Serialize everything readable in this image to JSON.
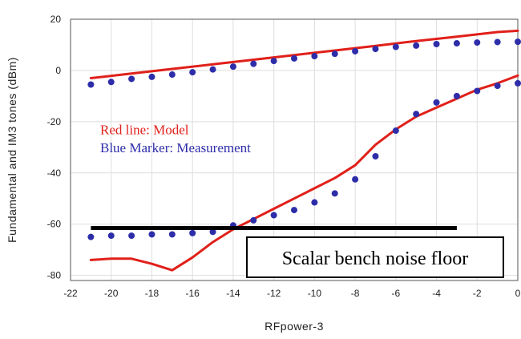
{
  "chart_data": {
    "type": "line",
    "xlabel": "RFpower-3",
    "ylabel": "Fundamental and IM3 tones (dBm)",
    "xlim": [
      -22,
      0
    ],
    "ylim": [
      -82,
      20
    ],
    "x_ticks": [
      "-22",
      "-20",
      "-18",
      "-16",
      "-14",
      "-12",
      "-10",
      "-8",
      "-6",
      "-4",
      "-2",
      "0"
    ],
    "y_ticks": [
      "20",
      "0",
      "-20",
      "-40",
      "-60",
      "-80"
    ],
    "grid": true,
    "legend": {
      "model": "Red line: Model",
      "measurement": "Blue Marker: Measurement",
      "position": "middle-left"
    },
    "series": [
      {
        "name": "Model",
        "kind": "line",
        "color": "#e0201a",
        "points": [
          [
            -21,
            -3
          ],
          [
            -19,
            -1.2
          ],
          [
            -17,
            0.6
          ],
          [
            -15,
            2.4
          ],
          [
            -13,
            4.2
          ],
          [
            -11,
            6
          ],
          [
            -9,
            7.8
          ],
          [
            -7,
            9.6
          ],
          [
            -5,
            11.5
          ],
          [
            -3,
            13.2
          ],
          [
            -1,
            15
          ],
          [
            0,
            15.5
          ]
        ]
      },
      {
        "name": "Model",
        "kind": "line",
        "color": "#e0201a",
        "points": [
          [
            -21,
            -74
          ],
          [
            -20,
            -73.5
          ],
          [
            -19,
            -73.5
          ],
          [
            -18,
            -75.5
          ],
          [
            -17,
            -78
          ],
          [
            -16,
            -73
          ],
          [
            -15,
            -67
          ],
          [
            -14,
            -62
          ],
          [
            -13,
            -58
          ],
          [
            -12,
            -54
          ],
          [
            -11,
            -50
          ],
          [
            -10,
            -46
          ],
          [
            -9,
            -42
          ],
          [
            -8,
            -37
          ],
          [
            -7,
            -29
          ],
          [
            -6,
            -23
          ],
          [
            -5,
            -18
          ],
          [
            -4,
            -14.5
          ],
          [
            -3,
            -11
          ],
          [
            -2,
            -7.5
          ],
          [
            -1,
            -5
          ],
          [
            0,
            -2
          ]
        ]
      },
      {
        "name": "Measurement",
        "kind": "markers",
        "color": "#2d2daa",
        "points": [
          [
            -21,
            -5.5
          ],
          [
            -20,
            -4.5
          ],
          [
            -19,
            -3.3
          ],
          [
            -18,
            -2.5
          ],
          [
            -17,
            -1.6
          ],
          [
            -16,
            -0.7
          ],
          [
            -15,
            0.4
          ],
          [
            -14,
            1.5
          ],
          [
            -13,
            2.6
          ],
          [
            -12,
            3.7
          ],
          [
            -11,
            4.7
          ],
          [
            -10,
            5.6
          ],
          [
            -9,
            6.5
          ],
          [
            -8,
            7.5
          ],
          [
            -7,
            8.4
          ],
          [
            -6,
            9.2
          ],
          [
            -5,
            9.7
          ],
          [
            -4,
            10.3
          ],
          [
            -3,
            10.6
          ],
          [
            -2,
            10.9
          ],
          [
            -1,
            11.1
          ],
          [
            0,
            11.2
          ]
        ]
      },
      {
        "name": "Measurement",
        "kind": "markers",
        "color": "#2d2daa",
        "points": [
          [
            -21,
            -65
          ],
          [
            -20,
            -64.5
          ],
          [
            -19,
            -64.5
          ],
          [
            -18,
            -64
          ],
          [
            -17,
            -64
          ],
          [
            -16,
            -63.5
          ],
          [
            -15,
            -63
          ],
          [
            -14,
            -60.5
          ],
          [
            -13,
            -58.5
          ],
          [
            -12,
            -56.5
          ],
          [
            -11,
            -54.5
          ],
          [
            -10,
            -51.5
          ],
          [
            -9,
            -48
          ],
          [
            -8,
            -42.5
          ],
          [
            -7,
            -33.5
          ],
          [
            -6,
            -23.5
          ],
          [
            -5,
            -17
          ],
          [
            -4,
            -12.5
          ],
          [
            -3,
            -10
          ],
          [
            -2,
            -8
          ],
          [
            -1,
            -6
          ],
          [
            0,
            -5
          ]
        ]
      },
      {
        "name": "Scalar bench noise floor",
        "kind": "hline",
        "color": "#000000",
        "y": -61.5,
        "x": [
          -21,
          -3
        ]
      }
    ],
    "annotations": {
      "noise_floor": "Scalar bench noise floor"
    }
  }
}
